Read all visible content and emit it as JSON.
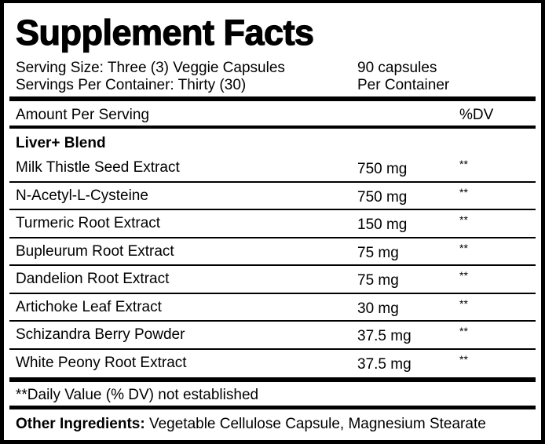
{
  "title": "Supplement Facts",
  "serving": {
    "size": "Serving Size: Three (3) Veggie Capsules",
    "per_container": "Servings Per Container: Thirty (30)",
    "count": "90 capsules",
    "count_suffix": "Per Container"
  },
  "header": {
    "amount": "Amount Per Serving",
    "dv": "%DV"
  },
  "blend_name": "Liver+ Blend",
  "ingredients": [
    {
      "name": "Milk Thistle Seed Extract",
      "amount": "750 mg",
      "dv": "**"
    },
    {
      "name": "N-Acetyl-L-Cysteine",
      "amount": "750 mg",
      "dv": "**"
    },
    {
      "name": "Turmeric Root Extract",
      "amount": "150 mg",
      "dv": "**"
    },
    {
      "name": "Bupleurum Root Extract",
      "amount": "75 mg",
      "dv": "**"
    },
    {
      "name": "Dandelion Root Extract",
      "amount": "75 mg",
      "dv": "**"
    },
    {
      "name": "Artichoke Leaf Extract",
      "amount": "30 mg",
      "dv": "**"
    },
    {
      "name": "Schizandra Berry Powder",
      "amount": "37.5 mg",
      "dv": "**"
    },
    {
      "name": "White Peony Root Extract",
      "amount": "37.5 mg",
      "dv": "**"
    }
  ],
  "footnote": "**Daily Value (% DV) not established",
  "other": {
    "label": "Other Ingredients:",
    "value": " Vegetable Cellulose Capsule, Magnesium Stearate"
  }
}
